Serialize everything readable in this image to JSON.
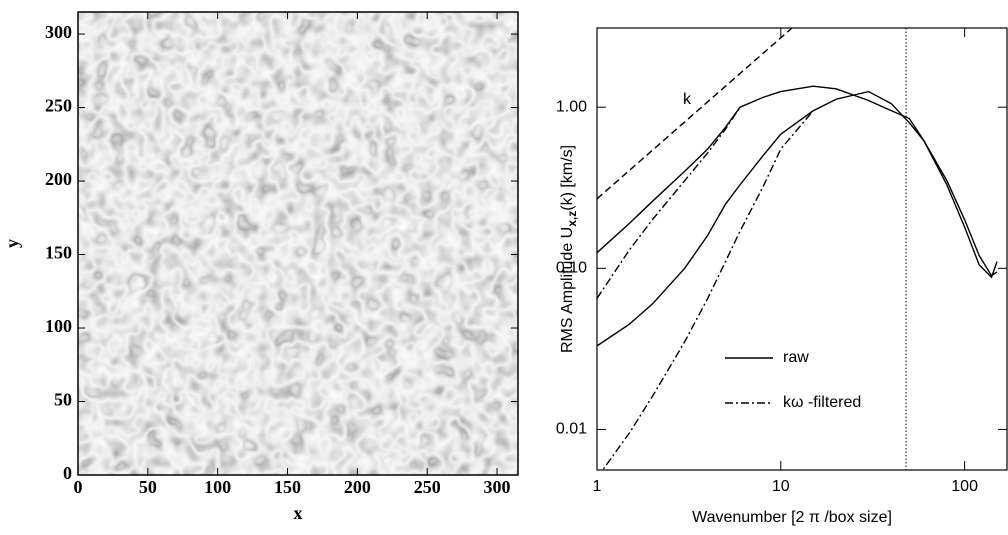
{
  "chart_data": [
    {
      "type": "image",
      "xlabel": "x",
      "ylabel": "y",
      "xlim": [
        0,
        315
      ],
      "ylim": [
        0,
        315
      ],
      "xticks": [
        0,
        50,
        100,
        150,
        200,
        250,
        300
      ],
      "yticks": [
        0,
        50,
        100,
        150,
        200,
        250,
        300
      ]
    },
    {
      "type": "line",
      "xscale": "log",
      "yscale": "log",
      "xlabel": "Wavenumber [2 π /box size]",
      "ylabel": {
        "text": "RMS Amplitude  U",
        "sub": "x,z",
        "rest": "(k) [km/s]"
      },
      "xlim": [
        1,
        170
      ],
      "ylim": [
        0.0056,
        3.1
      ],
      "xticks": [
        1,
        10,
        100
      ],
      "yticks": [
        {
          "value": 1,
          "label": "1.00"
        },
        {
          "value": 0.1,
          "label": "0.10"
        },
        0.01
      ],
      "legend": "lower center",
      "annotation": "k",
      "vlines": [
        48
      ],
      "series": [
        {
          "name": "raw",
          "color": "#000000",
          "dash": "solid",
          "x": [
            1,
            1.5,
            2,
            3,
            4,
            5,
            6,
            8,
            10,
            15,
            20,
            30,
            40,
            50,
            60,
            80,
            100,
            120,
            140,
            150
          ],
          "values": [
            0.125,
            0.19,
            0.26,
            0.4,
            0.55,
            0.75,
            1.0,
            1.15,
            1.25,
            1.35,
            1.3,
            1.1,
            0.95,
            0.85,
            0.62,
            0.33,
            0.18,
            0.105,
            0.088,
            0.11
          ]
        },
        {
          "color": "#000000",
          "dash": "solid",
          "x": [
            1,
            1.5,
            2,
            3,
            4,
            5,
            6,
            8,
            10,
            15,
            20,
            30,
            40,
            50,
            60,
            80,
            100,
            120,
            140,
            150
          ],
          "values": [
            0.033,
            0.045,
            0.06,
            0.1,
            0.16,
            0.25,
            0.33,
            0.5,
            0.68,
            0.95,
            1.12,
            1.25,
            1.05,
            0.8,
            0.62,
            0.35,
            0.2,
            0.12,
            0.09,
            0.095
          ]
        },
        {
          "name": "kω -filtered",
          "color": "#000000",
          "dash": "dashdot",
          "x": [
            1,
            1.5,
            2,
            3,
            4,
            5,
            6
          ],
          "values": [
            0.065,
            0.13,
            0.2,
            0.35,
            0.52,
            0.73,
            1.0
          ]
        },
        {
          "color": "#000000",
          "dash": "dashdot",
          "x": [
            1,
            1.5,
            2,
            3,
            4,
            5,
            6,
            8,
            10,
            15
          ],
          "values": [
            0.005,
            0.0095,
            0.016,
            0.035,
            0.065,
            0.11,
            0.17,
            0.32,
            0.55,
            0.95
          ]
        },
        {
          "color": "#000000",
          "dash": "dashed",
          "x": [
            1,
            11.5
          ],
          "values": [
            0.27,
            3.1
          ]
        }
      ]
    }
  ]
}
